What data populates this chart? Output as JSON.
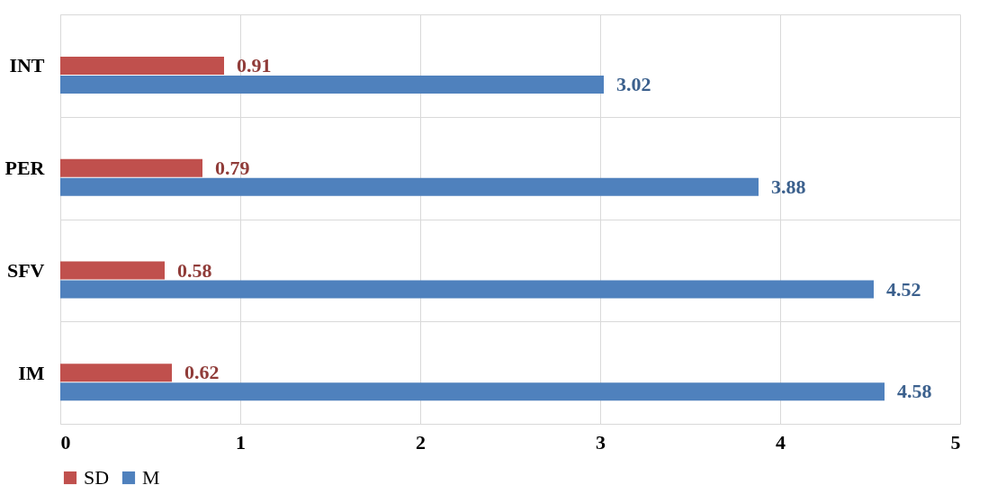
{
  "chart_data": {
    "type": "bar",
    "orientation": "horizontal",
    "categories": [
      "INT",
      "PER",
      "SFV",
      "IM"
    ],
    "series": [
      {
        "name": "SD",
        "color": "#c0504d",
        "values": [
          0.91,
          0.79,
          0.58,
          0.62
        ]
      },
      {
        "name": "M",
        "color": "#4f81bd",
        "values": [
          3.02,
          3.88,
          4.52,
          4.58
        ]
      }
    ],
    "xlim": [
      0,
      5
    ],
    "xticks": [
      0,
      1,
      2,
      3,
      4,
      5
    ],
    "grid": true,
    "legend": "bottom",
    "data_labels": true
  }
}
